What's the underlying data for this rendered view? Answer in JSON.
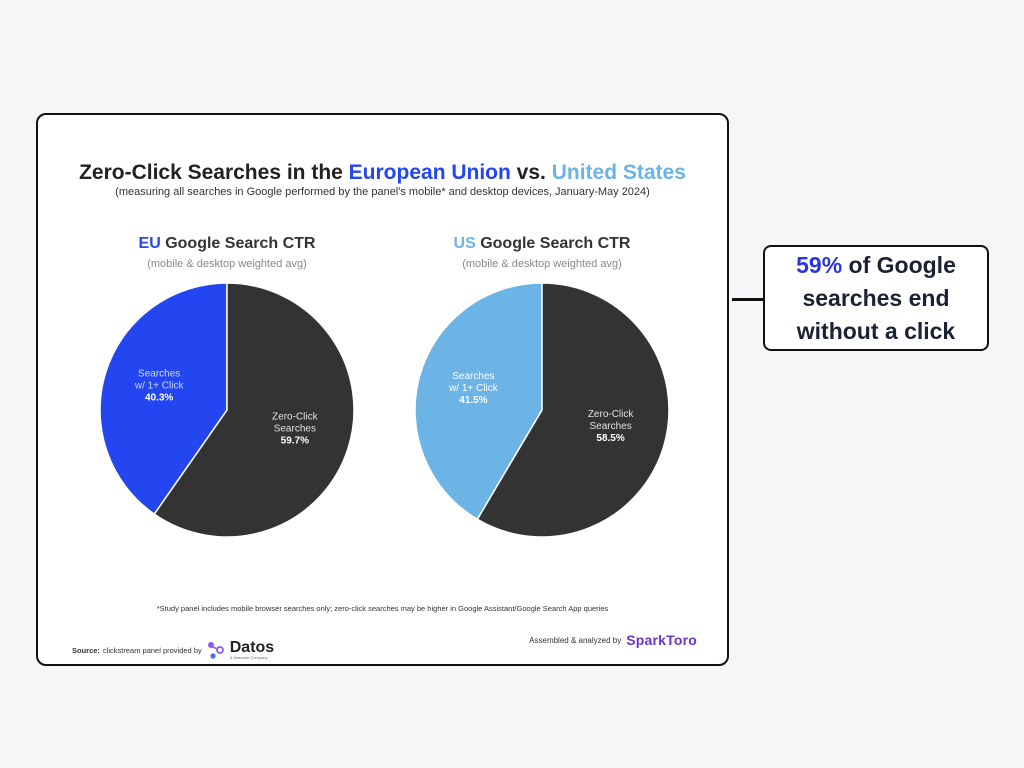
{
  "title": {
    "part1": "Zero-Click Searches in the ",
    "part2": "European Union",
    "part3": " vs. ",
    "part4": "United States"
  },
  "subtitle": "(measuring all searches in Google performed by the panel's mobile* and desktop devices, January-May 2024)",
  "colors": {
    "eu_blue": "#2346f0",
    "us_blue": "#6cb3e6",
    "zero_click_gray": "#333333",
    "title_dark": "#222222",
    "callout_highlight": "#2a35e0"
  },
  "chart_data": [
    {
      "type": "pie",
      "title_prefix": "EU",
      "title_rest": " Google Search CTR",
      "subtitle": "(mobile & desktop weighted avg)",
      "slices": [
        {
          "label_line1": "Searches",
          "label_line2": "w/ 1+ Click",
          "value": 40.3,
          "value_label": "40.3%",
          "color": "#2346f0"
        },
        {
          "label_line1": "Zero-Click",
          "label_line2": "Searches",
          "value": 59.7,
          "value_label": "59.7%",
          "color": "#333333"
        }
      ]
    },
    {
      "type": "pie",
      "title_prefix": "US",
      "title_rest": " Google Search CTR",
      "subtitle": "(mobile & desktop weighted avg)",
      "slices": [
        {
          "label_line1": "Searches",
          "label_line2": "w/ 1+ Click",
          "value": 41.5,
          "value_label": "41.5%",
          "color": "#6cb3e6"
        },
        {
          "label_line1": "Zero-Click",
          "label_line2": "Searches",
          "value": 58.5,
          "value_label": "58.5%",
          "color": "#333333"
        }
      ]
    }
  ],
  "footnote": "*Study panel includes mobile browser searches only; zero-click searches may be higher in Google Assistant/Google Search App queries",
  "source": {
    "label": "Source:",
    "text": "clickstream panel provided by",
    "brand": "Datos",
    "brand_tag": "A Semrush Company"
  },
  "assembled": {
    "text": "Assembled & analyzed by",
    "brand": "SparkToro"
  },
  "callout": {
    "highlight": "59%",
    "line1_rest": " of Google",
    "line2": "searches end",
    "line3": "without a click"
  }
}
